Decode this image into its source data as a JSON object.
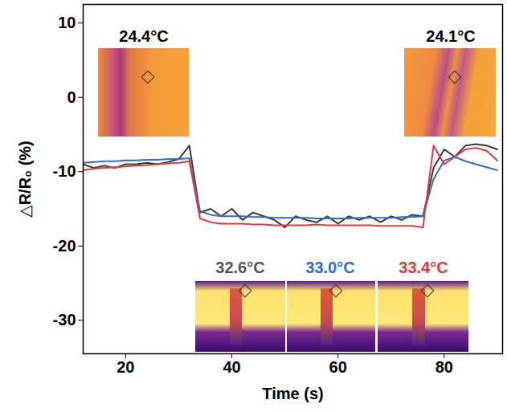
{
  "chart_data": {
    "type": "line",
    "x_label": "Time (s)",
    "y_label": "△R/R₀ (%)",
    "x": [
      12,
      14,
      16,
      18,
      20,
      22,
      24,
      26,
      28,
      30,
      32,
      34,
      36,
      38,
      40,
      42,
      44,
      46,
      48,
      50,
      52,
      54,
      56,
      58,
      60,
      62,
      64,
      66,
      68,
      70,
      72,
      74,
      76,
      78,
      80,
      82,
      84,
      86,
      88,
      90
    ],
    "series": [
      {
        "name": "32.6°C",
        "color": "#3a3a3a",
        "values": [
          -9,
          -9.5,
          -9.2,
          -9.5,
          -9,
          -9,
          -8.8,
          -9,
          -8.7,
          -8.3,
          -6.5,
          -15.5,
          -15,
          -16,
          -15,
          -16.5,
          -15.5,
          -16,
          -16.5,
          -17.5,
          -16,
          -16.5,
          -16.8,
          -16,
          -17,
          -16,
          -16.5,
          -16,
          -16.8,
          -16,
          -16.5,
          -15.8,
          -16,
          -9.5,
          -7,
          -8,
          -6.5,
          -6.3,
          -6.5,
          -7
        ]
      },
      {
        "name": "33.0°C",
        "color": "#2f6bd1",
        "values": [
          -8.8,
          -8.7,
          -8.6,
          -8.6,
          -8.5,
          -8.5,
          -8.4,
          -8.4,
          -8.3,
          -8.3,
          -8.2,
          -15.3,
          -15.8,
          -16,
          -16,
          -16,
          -16.1,
          -16.1,
          -16.2,
          -16.2,
          -16.2,
          -16.2,
          -16.3,
          -16.3,
          -16.3,
          -16.3,
          -16.2,
          -16.2,
          -16.2,
          -16.2,
          -16.1,
          -16.1,
          -16.0,
          -11,
          -8.5,
          -8,
          -8.6,
          -9,
          -9.4,
          -9.8
        ]
      },
      {
        "name": "33.4°C",
        "color": "#e0393e",
        "values": [
          -9.8,
          -9.6,
          -9.5,
          -9.4,
          -9.3,
          -9.2,
          -9.1,
          -9,
          -8.9,
          -8.8,
          -8.6,
          -16.3,
          -16.8,
          -17,
          -17,
          -17,
          -17.1,
          -17.1,
          -17.2,
          -17.2,
          -17.2,
          -17.2,
          -17.1,
          -17.2,
          -17.2,
          -17.2,
          -17.2,
          -17.2,
          -17.3,
          -17.3,
          -17.3,
          -17.3,
          -17.5,
          -6.5,
          -9,
          -8,
          -7,
          -6.8,
          -7.2,
          -8.5
        ]
      }
    ],
    "annotations": [
      {
        "text": "24.4°C",
        "color": "#000000"
      },
      {
        "text": "24.1°C",
        "color": "#000000"
      },
      {
        "text": "32.6°C",
        "color": "#555555"
      },
      {
        "text": "33.0°C",
        "color": "#2f6bd1"
      },
      {
        "text": "33.4°C",
        "color": "#e0393e"
      }
    ],
    "xlim": [
      12,
      91
    ],
    "ylim": [
      -34.5,
      12.5
    ],
    "xticks": [
      20,
      40,
      60,
      80
    ],
    "yticks": [
      -30,
      -20,
      -10,
      0,
      10
    ],
    "grid": false
  }
}
